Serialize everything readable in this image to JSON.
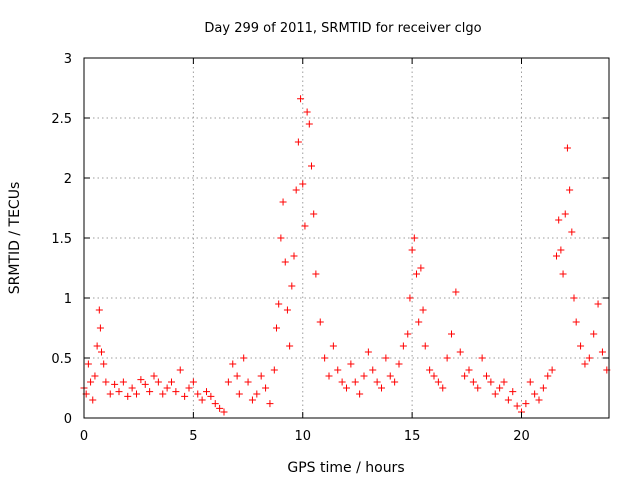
{
  "chart_data": {
    "type": "scatter",
    "title": "Day 299 of 2011, SRMTID for receiver clgo",
    "xlabel": "GPS time / hours",
    "ylabel": "SRMTID / TECUs",
    "xlim": [
      0,
      24
    ],
    "ylim": [
      0,
      3
    ],
    "xticks": [
      0,
      5,
      10,
      15,
      20
    ],
    "xtick_labels": [
      "0",
      "5",
      "10",
      "15",
      "20"
    ],
    "yticks": [
      0,
      0.5,
      1,
      1.5,
      2,
      2.5,
      3
    ],
    "ytick_labels": [
      "0",
      "0.5",
      "1",
      "1.5",
      "2",
      "2.5",
      "3"
    ],
    "grid": true,
    "marker": "+",
    "series": [
      {
        "name": "SRMTID",
        "color": "#ff0000",
        "x": [
          0.0,
          0.1,
          0.2,
          0.3,
          0.4,
          0.5,
          0.6,
          0.7,
          0.75,
          0.8,
          0.9,
          1.0,
          1.2,
          1.4,
          1.6,
          1.8,
          2.0,
          2.2,
          2.4,
          2.6,
          2.8,
          3.0,
          3.2,
          3.4,
          3.6,
          3.8,
          4.0,
          4.2,
          4.4,
          4.6,
          4.8,
          5.0,
          5.2,
          5.4,
          5.6,
          5.8,
          6.0,
          6.2,
          6.4,
          6.6,
          6.8,
          7.0,
          7.1,
          7.3,
          7.5,
          7.7,
          7.9,
          8.1,
          8.3,
          8.5,
          8.7,
          8.8,
          8.9,
          9.0,
          9.1,
          9.2,
          9.3,
          9.4,
          9.5,
          9.6,
          9.7,
          9.8,
          9.9,
          10.0,
          10.1,
          10.2,
          10.3,
          10.4,
          10.5,
          10.6,
          10.8,
          11.0,
          11.2,
          11.4,
          11.6,
          11.8,
          12.0,
          12.2,
          12.4,
          12.6,
          12.8,
          13.0,
          13.2,
          13.4,
          13.6,
          13.8,
          14.0,
          14.2,
          14.4,
          14.6,
          14.8,
          14.9,
          15.0,
          15.1,
          15.2,
          15.3,
          15.4,
          15.5,
          15.6,
          15.8,
          16.0,
          16.2,
          16.4,
          16.6,
          16.8,
          17.0,
          17.2,
          17.4,
          17.6,
          17.8,
          18.0,
          18.2,
          18.4,
          18.6,
          18.8,
          19.0,
          19.2,
          19.4,
          19.6,
          19.8,
          20.0,
          20.2,
          20.4,
          20.6,
          20.8,
          21.0,
          21.2,
          21.4,
          21.6,
          21.7,
          21.8,
          21.9,
          22.0,
          22.1,
          22.2,
          22.3,
          22.4,
          22.5,
          22.7,
          22.9,
          23.1,
          23.3,
          23.5,
          23.7,
          23.9
        ],
        "y": [
          0.25,
          0.2,
          0.45,
          0.3,
          0.15,
          0.35,
          0.6,
          0.9,
          0.75,
          0.55,
          0.45,
          0.3,
          0.2,
          0.28,
          0.22,
          0.3,
          0.18,
          0.25,
          0.2,
          0.32,
          0.28,
          0.22,
          0.35,
          0.3,
          0.2,
          0.25,
          0.3,
          0.22,
          0.4,
          0.18,
          0.25,
          0.3,
          0.2,
          0.15,
          0.22,
          0.18,
          0.12,
          0.08,
          0.05,
          0.3,
          0.45,
          0.35,
          0.2,
          0.5,
          0.3,
          0.15,
          0.2,
          0.35,
          0.25,
          0.12,
          0.4,
          0.75,
          0.95,
          1.5,
          1.8,
          1.3,
          0.9,
          0.6,
          1.1,
          1.35,
          1.9,
          2.3,
          2.66,
          1.95,
          1.6,
          2.55,
          2.45,
          2.1,
          1.7,
          1.2,
          0.8,
          0.5,
          0.35,
          0.6,
          0.4,
          0.3,
          0.25,
          0.45,
          0.3,
          0.2,
          0.35,
          0.55,
          0.4,
          0.3,
          0.25,
          0.5,
          0.35,
          0.3,
          0.45,
          0.6,
          0.7,
          1.0,
          1.4,
          1.5,
          1.2,
          0.8,
          1.25,
          0.9,
          0.6,
          0.4,
          0.35,
          0.3,
          0.25,
          0.5,
          0.7,
          1.05,
          0.55,
          0.35,
          0.4,
          0.3,
          0.25,
          0.5,
          0.35,
          0.3,
          0.2,
          0.25,
          0.3,
          0.15,
          0.22,
          0.1,
          0.05,
          0.12,
          0.3,
          0.2,
          0.15,
          0.25,
          0.35,
          0.4,
          1.35,
          1.65,
          1.4,
          1.2,
          1.7,
          2.25,
          1.9,
          1.55,
          1.0,
          0.8,
          0.6,
          0.45,
          0.5,
          0.7,
          0.95,
          0.55,
          0.4
        ]
      }
    ]
  }
}
